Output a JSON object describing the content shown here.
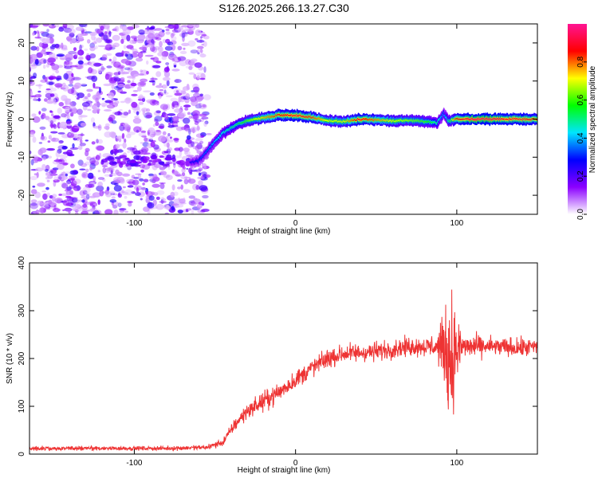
{
  "title": "S126.2025.266.13.27.C30",
  "chart_data": [
    {
      "type": "heatmap",
      "name": "spectrogram",
      "xlabel": "Height of straight line (km)",
      "ylabel": "Frequency (Hz)",
      "xlim": [
        -165,
        150
      ],
      "ylim": [
        -25,
        25
      ],
      "xticks": [
        -100,
        0,
        100
      ],
      "xtick_labels": [
        "-100",
        "0",
        "100"
      ],
      "yticks": [
        -20,
        -10,
        0,
        10,
        20
      ],
      "ytick_labels": [
        "-20",
        "-10",
        "0",
        "10",
        "20"
      ],
      "noise_region_x": [
        -165,
        -55
      ],
      "ridge": [
        {
          "x": -65,
          "y": -11.5,
          "a": 0.25
        },
        {
          "x": -60,
          "y": -11.0,
          "a": 0.3
        },
        {
          "x": -55,
          "y": -8.5,
          "a": 0.35
        },
        {
          "x": -50,
          "y": -6.0,
          "a": 0.4
        },
        {
          "x": -45,
          "y": -3.8,
          "a": 0.45
        },
        {
          "x": -40,
          "y": -2.3,
          "a": 0.5
        },
        {
          "x": -35,
          "y": -1.2,
          "a": 0.55
        },
        {
          "x": -30,
          "y": -0.5,
          "a": 0.6
        },
        {
          "x": -20,
          "y": 0.3,
          "a": 0.75
        },
        {
          "x": -10,
          "y": 1.0,
          "a": 0.85
        },
        {
          "x": 0,
          "y": 1.0,
          "a": 0.9
        },
        {
          "x": 10,
          "y": 0.5,
          "a": 0.85
        },
        {
          "x": 20,
          "y": -0.4,
          "a": 0.7
        },
        {
          "x": 30,
          "y": -0.6,
          "a": 0.7
        },
        {
          "x": 40,
          "y": 0.0,
          "a": 0.9
        },
        {
          "x": 50,
          "y": -0.2,
          "a": 0.8
        },
        {
          "x": 60,
          "y": -0.5,
          "a": 0.7
        },
        {
          "x": 70,
          "y": -0.3,
          "a": 0.65
        },
        {
          "x": 80,
          "y": -0.6,
          "a": 0.6
        },
        {
          "x": 88,
          "y": -1.0,
          "a": 0.5
        },
        {
          "x": 92,
          "y": 1.5,
          "a": 0.35
        },
        {
          "x": 95,
          "y": -0.5,
          "a": 0.5
        },
        {
          "x": 100,
          "y": 0.0,
          "a": 0.85
        },
        {
          "x": 110,
          "y": 0.0,
          "a": 0.95
        },
        {
          "x": 120,
          "y": 0.0,
          "a": 0.95
        },
        {
          "x": 130,
          "y": 0.0,
          "a": 0.9
        },
        {
          "x": 140,
          "y": 0.0,
          "a": 0.9
        },
        {
          "x": 150,
          "y": 0.0,
          "a": 0.85
        }
      ],
      "colorbar": {
        "label": "Normalized spectral amplitude",
        "range": [
          0,
          1
        ],
        "ticks": [
          0.0,
          0.2,
          0.4,
          0.6,
          0.8
        ],
        "tick_labels": [
          "0.0",
          "0.2",
          "0.4",
          "0.6",
          "0.8"
        ],
        "colors": [
          "#ffffff",
          "#8b00ff",
          "#0000ff",
          "#00e5ff",
          "#00ff00",
          "#ffff00",
          "#ff0000",
          "#ff1493"
        ]
      }
    },
    {
      "type": "line",
      "name": "snr",
      "xlabel": "Height of straight line (km)",
      "ylabel": "SNR (10 * v/v)",
      "xlim": [
        -165,
        150
      ],
      "ylim": [
        0,
        400
      ],
      "xticks": [
        -100,
        0,
        100
      ],
      "xtick_labels": [
        "-100",
        "0",
        "100"
      ],
      "yticks": [
        0,
        100,
        200,
        300,
        400
      ],
      "ytick_labels": [
        "0",
        "100",
        "200",
        "300",
        "400"
      ],
      "color": "#ee3333",
      "envelope": [
        {
          "x": -165,
          "mean": 12,
          "noise": 4
        },
        {
          "x": -120,
          "mean": 12,
          "noise": 4
        },
        {
          "x": -80,
          "mean": 12,
          "noise": 4
        },
        {
          "x": -55,
          "mean": 14,
          "noise": 5
        },
        {
          "x": -45,
          "mean": 25,
          "noise": 8
        },
        {
          "x": -38,
          "mean": 60,
          "noise": 12
        },
        {
          "x": -30,
          "mean": 90,
          "noise": 15
        },
        {
          "x": -20,
          "mean": 110,
          "noise": 18
        },
        {
          "x": -10,
          "mean": 130,
          "noise": 18
        },
        {
          "x": 0,
          "mean": 155,
          "noise": 18
        },
        {
          "x": 10,
          "mean": 180,
          "noise": 18
        },
        {
          "x": 20,
          "mean": 200,
          "noise": 18
        },
        {
          "x": 30,
          "mean": 210,
          "noise": 18
        },
        {
          "x": 40,
          "mean": 212,
          "noise": 18
        },
        {
          "x": 50,
          "mean": 215,
          "noise": 18
        },
        {
          "x": 60,
          "mean": 220,
          "noise": 18
        },
        {
          "x": 70,
          "mean": 225,
          "noise": 18
        },
        {
          "x": 80,
          "mean": 225,
          "noise": 18
        },
        {
          "x": 88,
          "mean": 225,
          "noise": 25
        },
        {
          "x": 93,
          "mean": 220,
          "noise": 75
        },
        {
          "x": 96,
          "mean": 200,
          "noise": 150
        },
        {
          "x": 99,
          "mean": 215,
          "noise": 70
        },
        {
          "x": 104,
          "mean": 225,
          "noise": 25
        },
        {
          "x": 120,
          "mean": 225,
          "noise": 18
        },
        {
          "x": 140,
          "mean": 222,
          "noise": 18
        },
        {
          "x": 150,
          "mean": 225,
          "noise": 18
        }
      ]
    }
  ]
}
